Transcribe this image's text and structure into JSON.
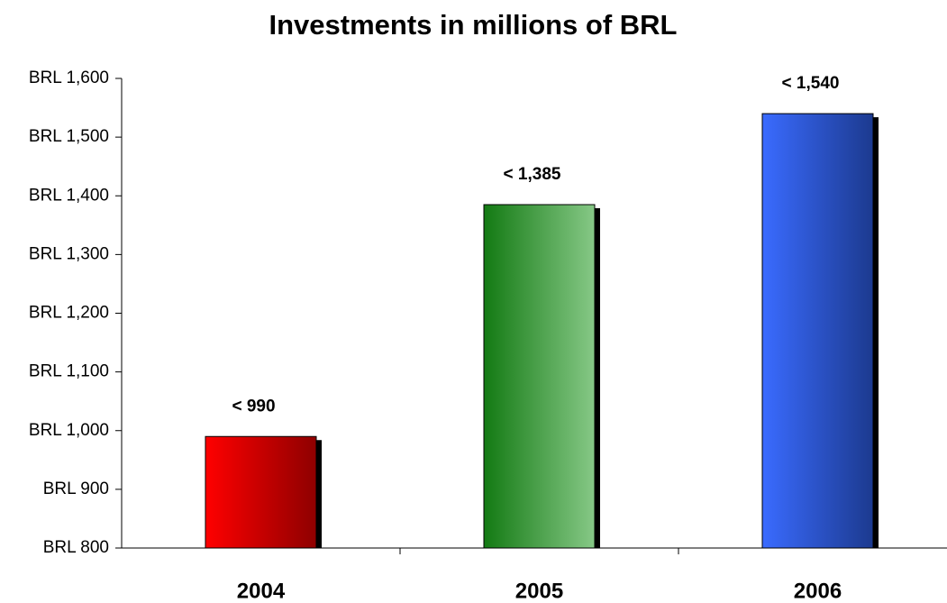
{
  "chart_data": {
    "type": "bar",
    "title": "Investments in millions of BRL",
    "categories": [
      "2004",
      "2005",
      "2006"
    ],
    "values": [
      990,
      1385,
      1540
    ],
    "value_labels": [
      "< 990",
      "< 1,385",
      "< 1,540"
    ],
    "colors": [
      [
        "#ff0000",
        "#8e0000"
      ],
      [
        "#137a13",
        "#86c886"
      ],
      [
        "#3a6bff",
        "#1c3a8f"
      ]
    ],
    "ylim": [
      800,
      1600
    ],
    "yticks": [
      {
        "value": 800,
        "label": "BRL 800"
      },
      {
        "value": 900,
        "label": "BRL 900"
      },
      {
        "value": 1000,
        "label": "BRL 1,000"
      },
      {
        "value": 1100,
        "label": "BRL 1,100"
      },
      {
        "value": 1200,
        "label": "BRL 1,200"
      },
      {
        "value": 1300,
        "label": "BRL 1,300"
      },
      {
        "value": 1400,
        "label": "BRL 1,400"
      },
      {
        "value": 1500,
        "label": "BRL 1,500"
      },
      {
        "value": 1600,
        "label": "BRL 1,600"
      }
    ]
  }
}
